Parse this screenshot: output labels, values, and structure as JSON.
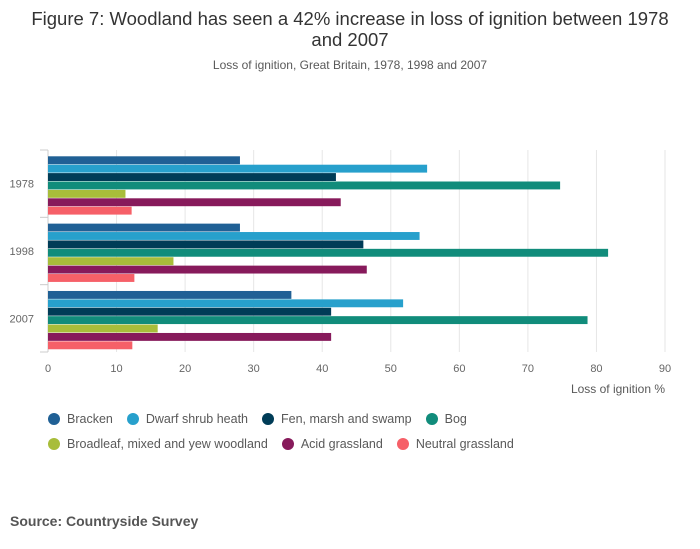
{
  "title": "Figure 7: Woodland has seen a 42% increase in loss of ignition between 1978 and 2007",
  "subtitle": "Loss of ignition, Great Britain, 1978, 1998 and 2007",
  "source": "Source: Countryside Survey",
  "chart_data": {
    "type": "bar",
    "orientation": "horizontal",
    "categories": [
      "1978",
      "1998",
      "2007"
    ],
    "xlabel": "Loss of ignition %",
    "ylabel": "",
    "xlim": [
      0,
      90
    ],
    "xticks": [
      "0",
      "10",
      "20",
      "30",
      "40",
      "50",
      "60",
      "70",
      "80",
      "90"
    ],
    "grid": true,
    "legend_position": "bottom",
    "series": [
      {
        "name": "Bracken",
        "color": "#206095",
        "values": [
          28,
          28,
          35.5
        ]
      },
      {
        "name": "Dwarf shrub heath",
        "color": "#27a0cc",
        "values": [
          55.3,
          54.2,
          51.8
        ]
      },
      {
        "name": "Fen, marsh and swamp",
        "color": "#003c57",
        "values": [
          42,
          46,
          41.3
        ]
      },
      {
        "name": "Bog",
        "color": "#118c7b",
        "values": [
          74.7,
          81.7,
          78.7
        ]
      },
      {
        "name": "Broadleaf, mixed and yew woodland",
        "color": "#a8bd3a",
        "values": [
          11.3,
          18.3,
          16
        ]
      },
      {
        "name": "Acid grassland",
        "color": "#871a5b",
        "values": [
          42.7,
          46.5,
          41.3
        ]
      },
      {
        "name": "Neutral grassland",
        "color": "#f66068",
        "values": [
          12.2,
          12.6,
          12.3
        ]
      }
    ]
  }
}
